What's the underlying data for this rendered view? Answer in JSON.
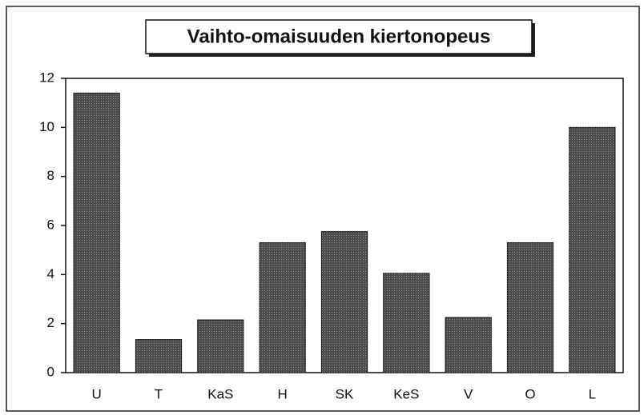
{
  "chart_data": {
    "type": "bar",
    "title": "Vaihto-omaisuuden kiertonopeus",
    "categories": [
      "U",
      "T",
      "KaS",
      "H",
      "SK",
      "KeS",
      "V",
      "O",
      "L"
    ],
    "values": [
      11.4,
      1.35,
      2.15,
      5.3,
      5.75,
      4.05,
      2.25,
      5.3,
      10.0
    ],
    "color": "#4d4d4d",
    "ylim": [
      0,
      12
    ],
    "yticks": [
      0,
      2,
      4,
      6,
      8,
      10,
      12
    ],
    "grid": false
  }
}
